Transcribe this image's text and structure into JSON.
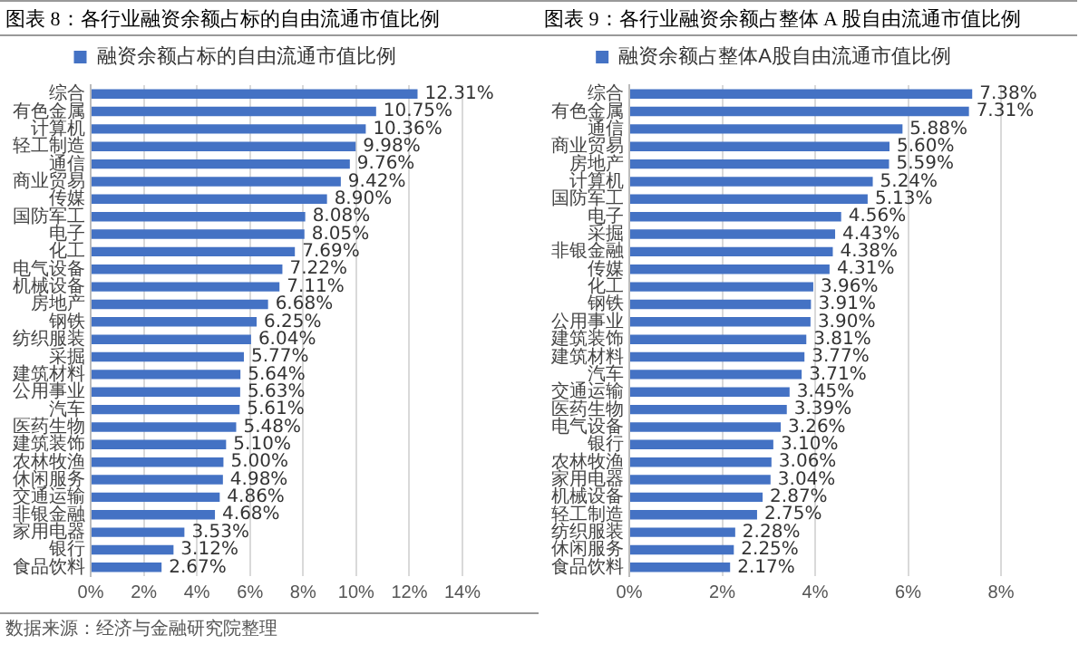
{
  "chart_data": [
    {
      "type": "bar",
      "orientation": "horizontal",
      "title": "图表 8：各行业融资余额占标的自由流通市值比例",
      "categories": [
        "综合",
        "有色金属",
        "计算机",
        "轻工制造",
        "通信",
        "商业贸易",
        "传媒",
        "国防军工",
        "电子",
        "化工",
        "电气设备",
        "机械设备",
        "房地产",
        "钢铁",
        "纺织服装",
        "采掘",
        "建筑材料",
        "公用事业",
        "汽车",
        "医药生物",
        "建筑装饰",
        "农林牧渔",
        "休闲服务",
        "交通运输",
        "非银金融",
        "家用电器",
        "银行",
        "食品饮料"
      ],
      "series": [
        {
          "name": "融资余额占标的自由流通市值比例",
          "color": "#4472c4",
          "values": [
            12.31,
            10.75,
            10.36,
            9.98,
            9.76,
            9.42,
            8.9,
            8.08,
            8.05,
            7.69,
            7.22,
            7.11,
            6.68,
            6.25,
            6.04,
            5.77,
            5.64,
            5.63,
            5.61,
            5.48,
            5.1,
            5.0,
            4.98,
            4.86,
            4.68,
            3.53,
            3.12,
            2.67
          ],
          "value_labels": [
            "12.31%",
            "10.75%",
            "10.36%",
            "9.98%",
            "9.76%",
            "9.42%",
            "8.90%",
            "8.08%",
            "8.05%",
            "7.69%",
            "7.22%",
            "7.11%",
            "6.68%",
            "6.25%",
            "6.04%",
            "5.77%",
            "5.64%",
            "5.63%",
            "5.61%",
            "5.48%",
            "5.10%",
            "5.00%",
            "4.98%",
            "4.86%",
            "4.68%",
            "3.53%",
            "3.12%",
            "2.67%"
          ]
        }
      ],
      "xlim": [
        0,
        14
      ],
      "xticks": [
        {
          "value": 0,
          "label": "0%"
        },
        {
          "value": 2,
          "label": "2%"
        },
        {
          "value": 4,
          "label": "4%"
        },
        {
          "value": 6,
          "label": "6%"
        },
        {
          "value": 8,
          "label": "8%"
        },
        {
          "value": 10,
          "label": "10%"
        },
        {
          "value": 12,
          "label": "12%"
        },
        {
          "value": 14,
          "label": "14%"
        }
      ],
      "grid": "x",
      "legend": "top",
      "annotations": [
        "数据来源：经济与金融研究院整理"
      ]
    },
    {
      "type": "bar",
      "orientation": "horizontal",
      "title": "图表 9：各行业融资余额占整体 A 股自由流通市值比例",
      "categories": [
        "综合",
        "有色金属",
        "通信",
        "商业贸易",
        "房地产",
        "计算机",
        "国防军工",
        "电子",
        "采掘",
        "非银金融",
        "传媒",
        "化工",
        "钢铁",
        "公用事业",
        "建筑装饰",
        "建筑材料",
        "汽车",
        "交通运输",
        "医药生物",
        "电气设备",
        "银行",
        "农林牧渔",
        "家用电器",
        "机械设备",
        "轻工制造",
        "纺织服装",
        "休闲服务",
        "食品饮料"
      ],
      "series": [
        {
          "name": "融资余额占整体A股自由流通市值比例",
          "color": "#4472c4",
          "values": [
            7.38,
            7.31,
            5.88,
            5.6,
            5.59,
            5.24,
            5.13,
            4.56,
            4.43,
            4.38,
            4.31,
            3.96,
            3.91,
            3.9,
            3.81,
            3.77,
            3.71,
            3.45,
            3.39,
            3.26,
            3.1,
            3.06,
            3.04,
            2.87,
            2.75,
            2.28,
            2.25,
            2.17
          ],
          "value_labels": [
            "7.38%",
            "7.31%",
            "5.88%",
            "5.60%",
            "5.59%",
            "5.24%",
            "5.13%",
            "4.56%",
            "4.43%",
            "4.38%",
            "4.31%",
            "3.96%",
            "3.91%",
            "3.90%",
            "3.81%",
            "3.77%",
            "3.71%",
            "3.45%",
            "3.39%",
            "3.26%",
            "3.10%",
            "3.06%",
            "3.04%",
            "2.87%",
            "2.75%",
            "2.28%",
            "2.25%",
            "2.17%"
          ]
        }
      ],
      "xlim": [
        0,
        8
      ],
      "xticks": [
        {
          "value": 0,
          "label": "0%"
        },
        {
          "value": 2,
          "label": "2%"
        },
        {
          "value": 4,
          "label": "4%"
        },
        {
          "value": 6,
          "label": "6%"
        },
        {
          "value": 8,
          "label": "8%"
        }
      ],
      "grid": "x",
      "legend": "top"
    }
  ]
}
